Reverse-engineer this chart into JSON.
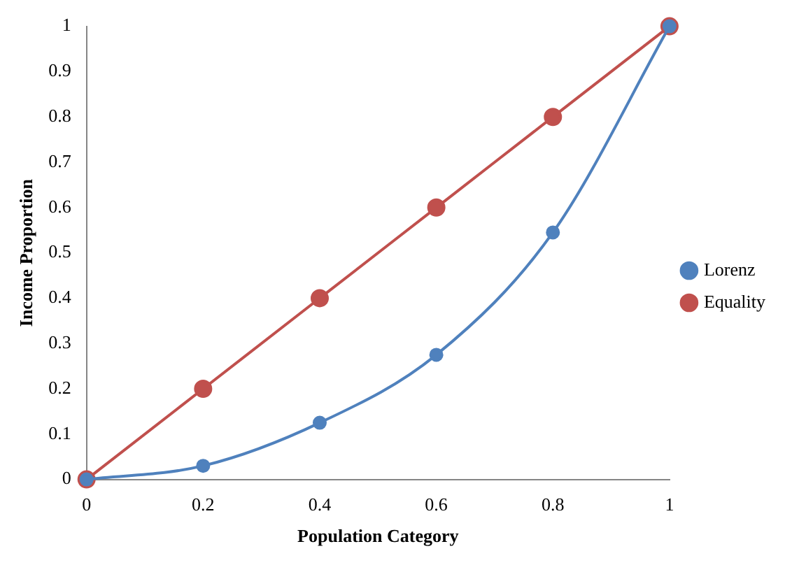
{
  "chart_data": {
    "type": "line",
    "xlabel": "Population Category",
    "ylabel": "Income Proportion",
    "series": [
      {
        "name": "Lorenz",
        "color": "#4f81bd",
        "x": [
          0,
          0.2,
          0.4,
          0.6,
          0.8,
          1
        ],
        "values": [
          0,
          0.03,
          0.125,
          0.275,
          0.545,
          1
        ]
      },
      {
        "name": "Equality",
        "color": "#c0504d",
        "x": [
          0,
          0.2,
          0.4,
          0.6,
          0.8,
          1
        ],
        "values": [
          0,
          0.2,
          0.4,
          0.6,
          0.8,
          1
        ]
      }
    ],
    "xlim": [
      0,
      1
    ],
    "xticks": [
      0,
      0.2,
      0.4,
      0.6,
      0.8,
      1
    ],
    "ylim": [
      0,
      1
    ],
    "yticks": [
      0,
      0.1,
      0.2,
      0.3,
      0.4,
      0.5,
      0.6,
      0.7,
      0.8,
      0.9,
      1
    ],
    "grid": false,
    "legend": "right",
    "marker": "circle",
    "line_style": "solid"
  }
}
